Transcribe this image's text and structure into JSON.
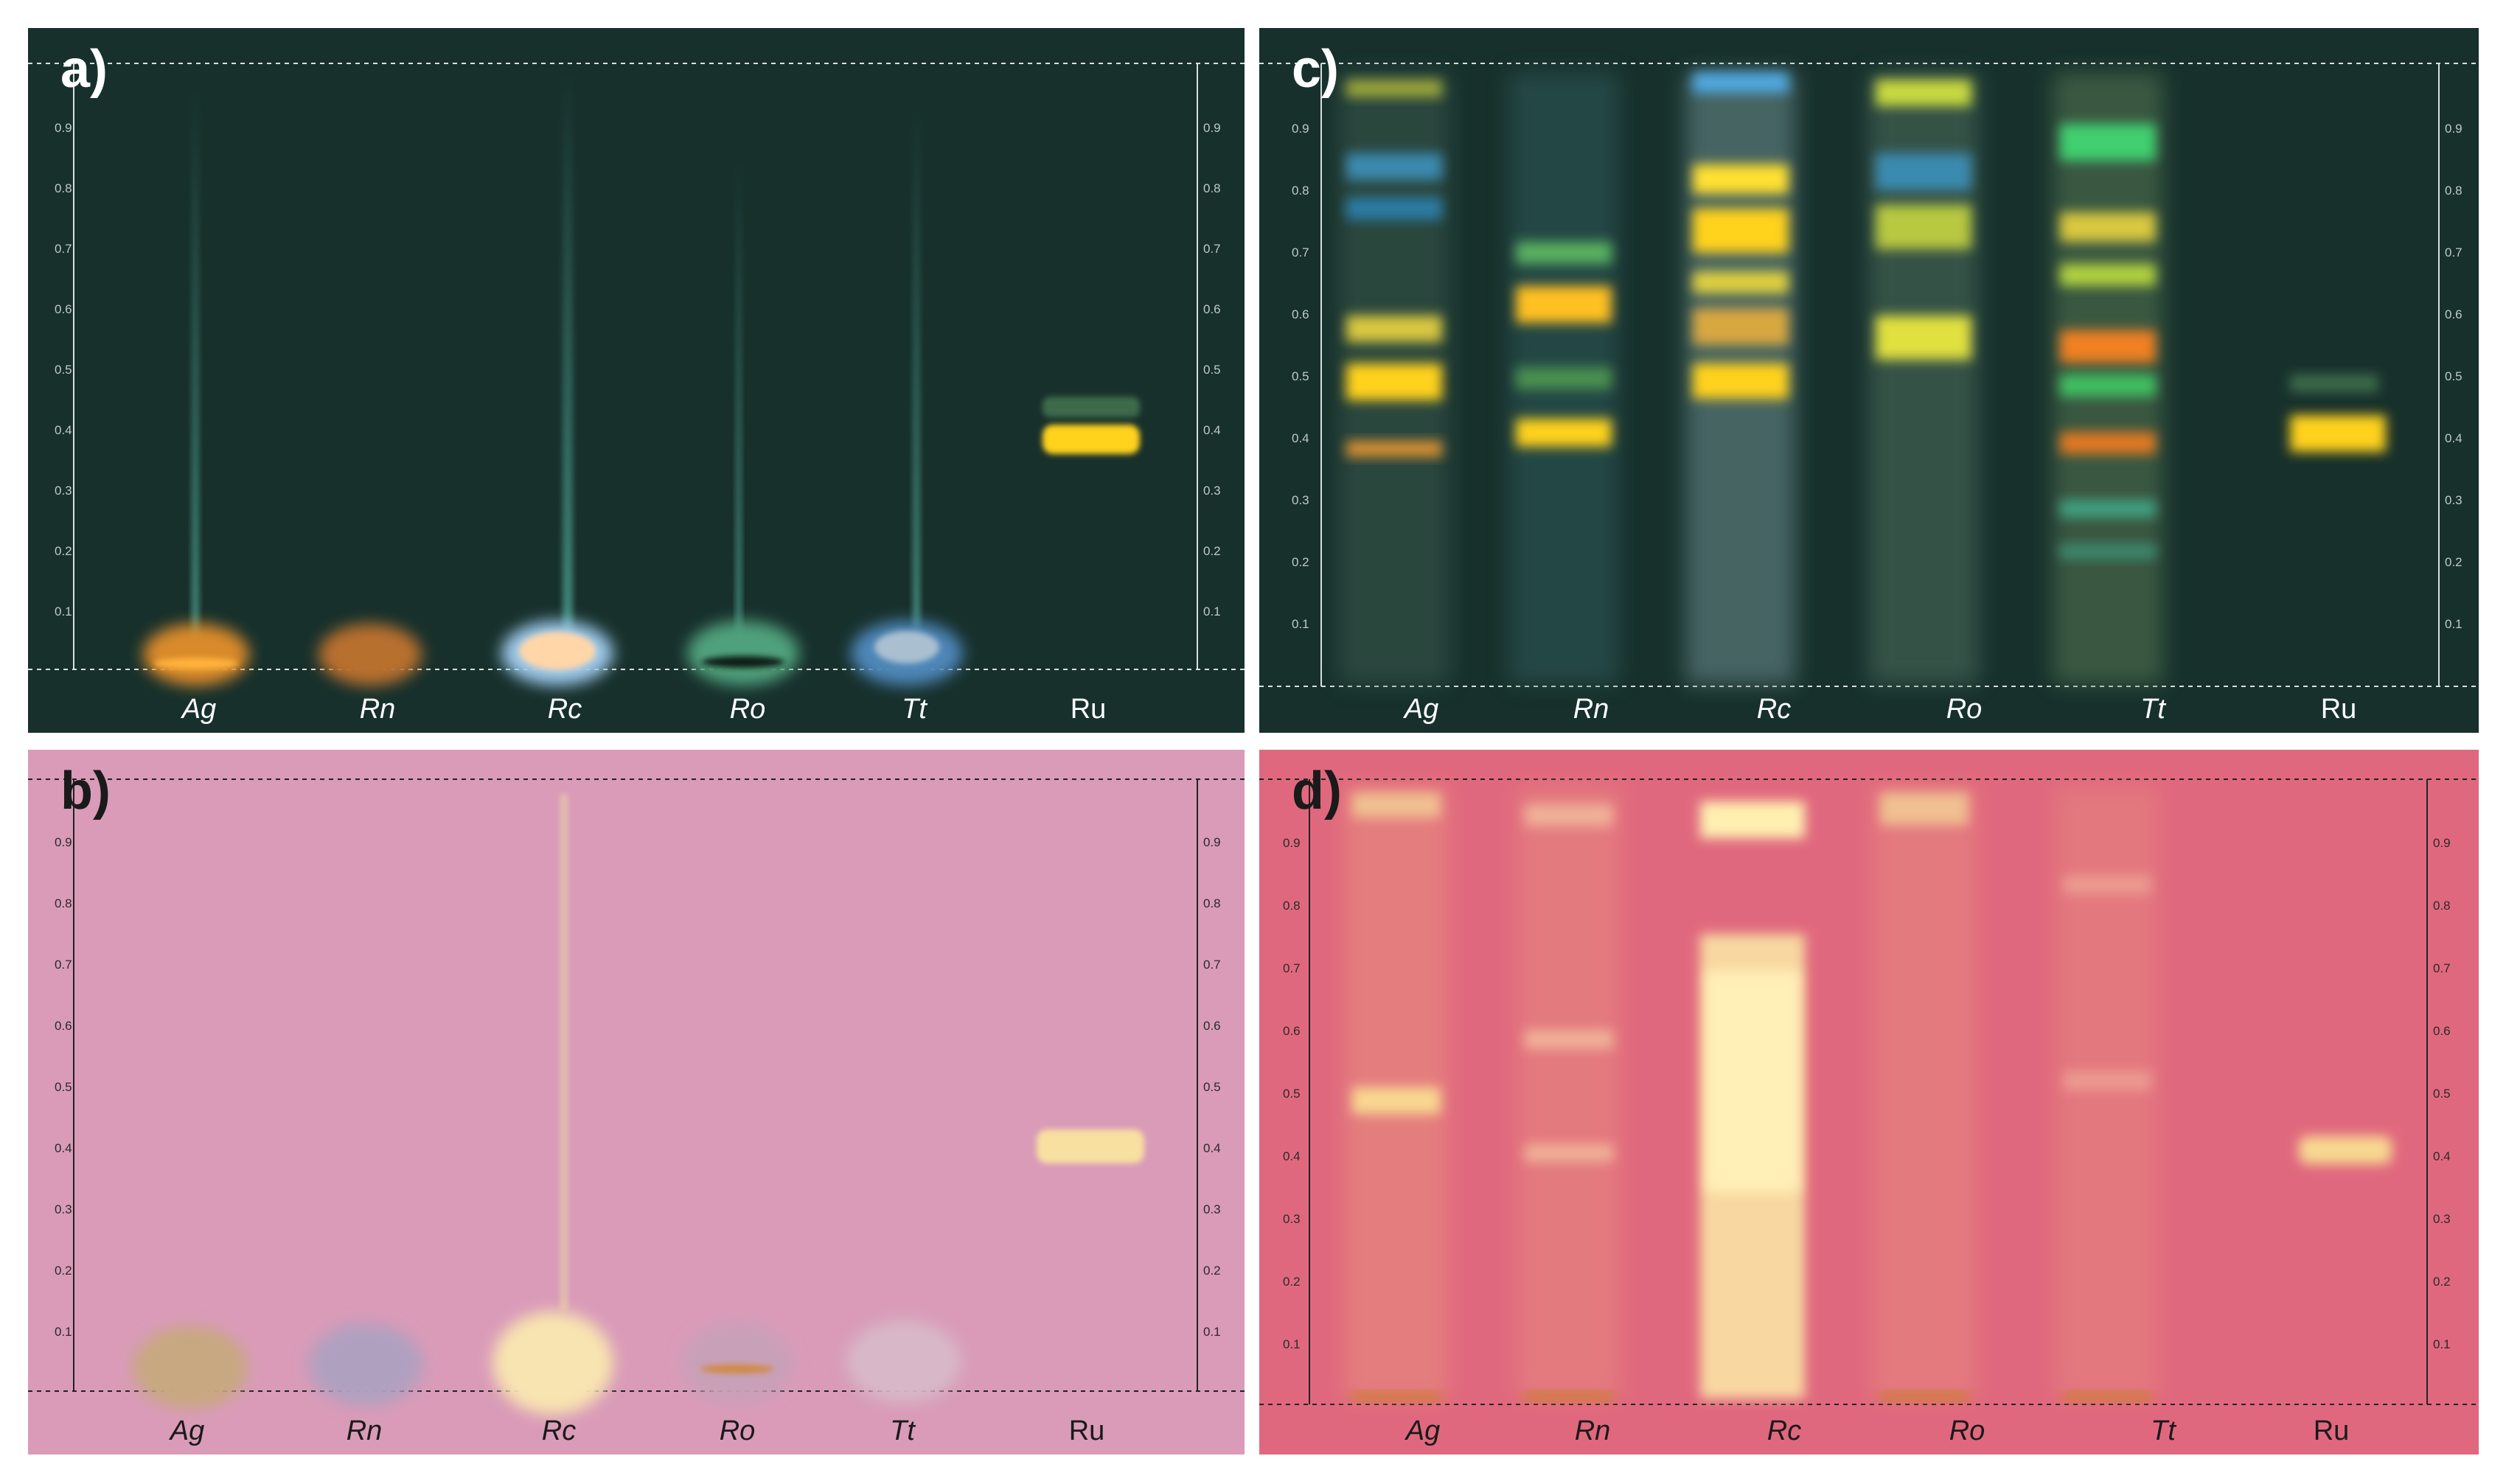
{
  "panels": {
    "a": {
      "letter": "a)"
    },
    "b": {
      "letter": "b)"
    },
    "c": {
      "letter": "c)"
    },
    "d": {
      "letter": "d)"
    }
  },
  "rf_ticks": [
    "0.1",
    "0.2",
    "0.3",
    "0.4",
    "0.5",
    "0.6",
    "0.7",
    "0.8",
    "0.9"
  ],
  "lanes": [
    "Ag",
    "Rn",
    "Rc",
    "Ro",
    "Tt",
    "Ru"
  ],
  "colors": {
    "dark_plate": "#17302c",
    "pink_plate": "#d99bb8",
    "red_plate": "#e0687e",
    "yellow_band": "#ffd21e"
  }
}
